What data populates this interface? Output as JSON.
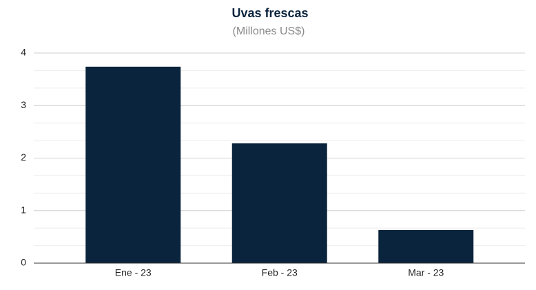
{
  "chart_data": {
    "type": "bar",
    "title": "Uvas frescas",
    "subtitle": "(Millones US$)",
    "categories": [
      "Ene - 23",
      "Feb - 23",
      "Mar - 23"
    ],
    "values": [
      3.74,
      2.28,
      0.63
    ],
    "color": "#0b243d",
    "ylim": [
      0,
      4
    ],
    "yticks": [
      0,
      1,
      2,
      3,
      4
    ],
    "grid": true,
    "minor_grid_divisions": 3
  }
}
